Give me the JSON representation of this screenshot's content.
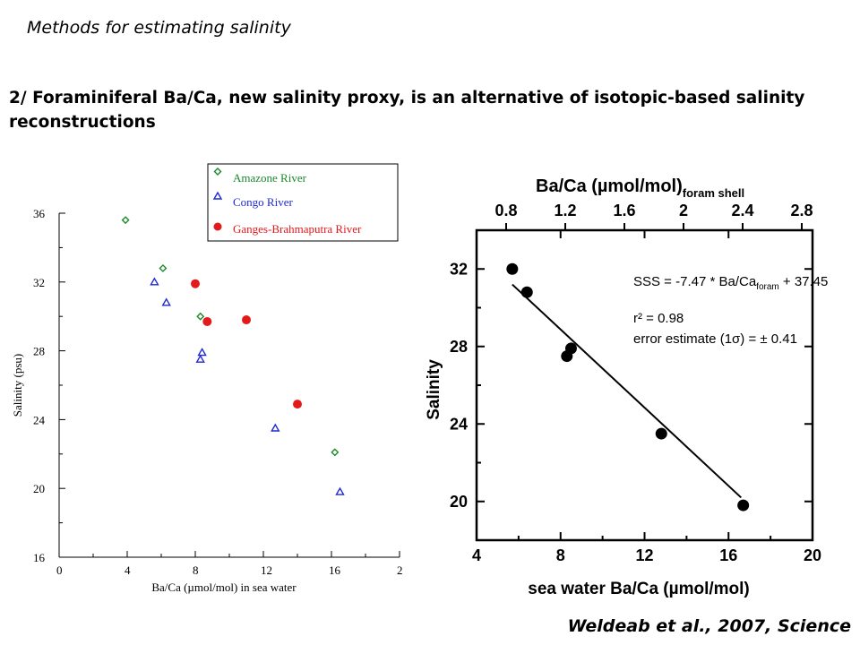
{
  "slide": {
    "subtitle": "Methods for estimating salinity",
    "heading": "2/ Foraminiferal Ba/Ca, new salinity proxy, is an alternative of isotopic-based salinity reconstructions",
    "citation": "Weldeab et al., 2007, Science"
  },
  "chart_data": [
    {
      "type": "scatter",
      "xlabel": "Ba/Ca (µmol/mol) in sea water",
      "ylabel": "Salinity (psu)",
      "xlim": [
        0,
        20
      ],
      "ylim": [
        16,
        36
      ],
      "xticks": [
        "0",
        "4",
        "8",
        "12",
        "16",
        "2"
      ],
      "yticks": [
        "16",
        "20",
        "24",
        "28",
        "32",
        "36"
      ],
      "legend_position": "top-right, above plot",
      "grid": false,
      "series": [
        {
          "name": "Amazone River",
          "marker": "diamond",
          "color": "#1a8a2a",
          "x": [
            3.9,
            6.1,
            8.3,
            16.2
          ],
          "y": [
            35.6,
            32.8,
            30.0,
            22.1
          ]
        },
        {
          "name": "Congo River",
          "marker": "triangle",
          "color": "#1f2ad6",
          "x": [
            5.6,
            6.3,
            8.4,
            8.3,
            12.7,
            16.5
          ],
          "y": [
            32.0,
            30.8,
            27.9,
            27.5,
            23.5,
            19.8
          ]
        },
        {
          "name": "Ganges-Brahmaputra River",
          "marker": "circle",
          "color": "#e31a1a",
          "x": [
            8.0,
            8.7,
            11.0,
            14.0
          ],
          "y": [
            31.9,
            29.7,
            29.8,
            24.9
          ]
        }
      ]
    },
    {
      "type": "scatter",
      "xlabel": "sea water Ba/Ca (µmol/mol)",
      "ylabel": "Salinity",
      "top_axis_label": "Ba/Ca (µmol/mol)",
      "top_axis_subscript": "foram shell",
      "top_ticks": [
        "0.8",
        "1.2",
        "1.6",
        "2",
        "2.4",
        "2.8"
      ],
      "xlim": [
        4,
        20
      ],
      "ylim": [
        18,
        34
      ],
      "xticks": [
        "4",
        "8",
        "12",
        "16",
        "20"
      ],
      "yticks": [
        "20",
        "24",
        "28",
        "32"
      ],
      "grid": false,
      "series": [
        {
          "name": "",
          "marker": "circle",
          "color": "#000000",
          "x": [
            5.7,
            6.4,
            8.3,
            8.5,
            12.8,
            16.7
          ],
          "y": [
            32.0,
            30.8,
            27.5,
            27.9,
            23.5,
            19.8
          ]
        }
      ],
      "fit_line": {
        "x": [
          5.7,
          16.6
        ],
        "y": [
          31.2,
          20.2
        ]
      },
      "annotation": {
        "equation_prefix": "SSS = -7.47 * Ba/Ca",
        "equation_sub": "foram",
        "equation_suffix": " + 37.45",
        "r2": "r² = 0.98",
        "error": "error estimate (1σ) = ± 0.41"
      }
    }
  ]
}
